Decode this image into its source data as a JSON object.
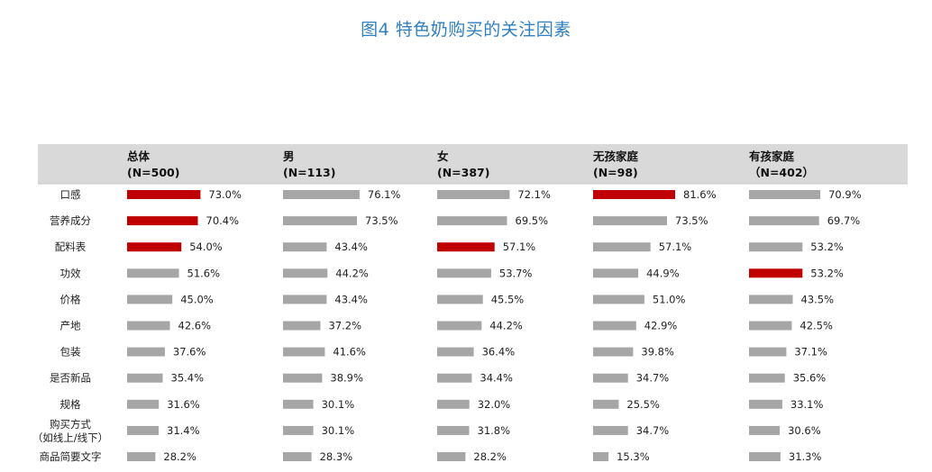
{
  "title": "图4 特色奶购买的关注因素",
  "colors": {
    "bar": "#a6a6a6",
    "highlight": "#c00000",
    "header_band": "#d9d9d9",
    "title": "#2f7fc1"
  },
  "chart_data": {
    "type": "bar",
    "title": "图4 特色奶购买的关注因素",
    "orientation": "horizontal",
    "categories": [
      "口感",
      "营养成分",
      "配料表",
      "功效",
      "价格",
      "产地",
      "包装",
      "是否新品",
      "规格",
      "购买方式（如线上/线下）",
      "商品简要文字"
    ],
    "category_lines": [
      [
        "口感"
      ],
      [
        "营养成分"
      ],
      [
        "配料表"
      ],
      [
        "功效"
      ],
      [
        "价格"
      ],
      [
        "产地"
      ],
      [
        "包装"
      ],
      [
        "是否新品"
      ],
      [
        "规格"
      ],
      [
        "购买方式",
        "（如线上/线下）"
      ],
      [
        "商品简要文字"
      ]
    ],
    "series": [
      {
        "name": "总体",
        "n": "(N=500)",
        "values": [
          73.0,
          70.4,
          54.0,
          51.6,
          45.0,
          42.6,
          37.6,
          35.4,
          31.6,
          31.4,
          28.2
        ],
        "highlight": [
          0,
          1,
          2
        ]
      },
      {
        "name": "男",
        "n": "(N=113)",
        "values": [
          76.1,
          73.5,
          43.4,
          44.2,
          43.4,
          37.2,
          41.6,
          38.9,
          30.1,
          30.1,
          28.3
        ],
        "highlight": []
      },
      {
        "name": "女",
        "n": "(N=387)",
        "values": [
          72.1,
          69.5,
          57.1,
          53.7,
          45.5,
          44.2,
          36.4,
          34.4,
          32.0,
          31.8,
          28.2
        ],
        "highlight": [
          2
        ]
      },
      {
        "name": "无孩家庭",
        "n": "(N=98)",
        "values": [
          81.6,
          73.5,
          57.1,
          44.9,
          51.0,
          42.9,
          39.8,
          34.7,
          25.5,
          34.7,
          15.3
        ],
        "highlight": [
          0
        ]
      },
      {
        "name": "有孩家庭",
        "n": "（N=402）",
        "values": [
          70.9,
          69.7,
          53.2,
          53.2,
          43.5,
          42.5,
          37.1,
          35.6,
          33.1,
          30.6,
          31.3
        ],
        "highlight": [
          3
        ]
      }
    ],
    "value_format": "percent, 1 decimal",
    "grid": false,
    "legend": "none"
  }
}
